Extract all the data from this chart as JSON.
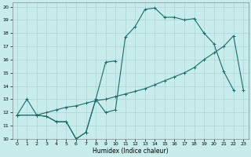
{
  "xlabel": "Humidex (Indice chaleur)",
  "background_color": "#c8ecec",
  "grid_color": "#aad4d4",
  "line_color": "#1a6b6b",
  "xlim": [
    -0.5,
    23.5
  ],
  "ylim": [
    10,
    20.3
  ],
  "xticks": [
    0,
    1,
    2,
    3,
    4,
    5,
    6,
    7,
    8,
    9,
    10,
    11,
    12,
    13,
    14,
    15,
    16,
    17,
    18,
    19,
    20,
    21,
    22,
    23
  ],
  "yticks": [
    10,
    11,
    12,
    13,
    14,
    15,
    16,
    17,
    18,
    19,
    20
  ],
  "line1": [
    [
      0,
      11.8
    ],
    [
      1,
      13.0
    ],
    [
      2,
      11.8
    ],
    [
      3,
      11.7
    ],
    [
      4,
      11.3
    ],
    [
      5,
      11.3
    ],
    [
      6,
      10.0
    ],
    [
      7,
      10.5
    ],
    [
      8,
      13.0
    ],
    [
      9,
      12.0
    ],
    [
      10,
      12.2
    ],
    [
      11,
      17.7
    ],
    [
      12,
      18.5
    ],
    [
      13,
      19.8
    ],
    [
      14,
      19.9
    ],
    [
      15,
      19.2
    ],
    [
      16,
      19.2
    ],
    [
      17,
      19.0
    ],
    [
      18,
      19.1
    ],
    [
      19,
      18.0
    ],
    [
      20,
      17.2
    ],
    [
      21,
      15.1
    ],
    [
      22,
      13.7
    ]
  ],
  "line2": [
    [
      0,
      11.8
    ],
    [
      2,
      11.8
    ],
    [
      3,
      11.7
    ],
    [
      4,
      11.3
    ],
    [
      5,
      11.3
    ],
    [
      6,
      10.0
    ],
    [
      7,
      10.5
    ],
    [
      8,
      13.0
    ],
    [
      9,
      15.8
    ],
    [
      10,
      15.9
    ]
  ],
  "line3": [
    [
      0,
      11.8
    ],
    [
      2,
      11.8
    ],
    [
      3,
      12.0
    ],
    [
      4,
      12.2
    ],
    [
      5,
      12.4
    ],
    [
      6,
      12.5
    ],
    [
      7,
      12.7
    ],
    [
      8,
      12.9
    ],
    [
      9,
      13.0
    ],
    [
      10,
      13.2
    ],
    [
      11,
      13.4
    ],
    [
      12,
      13.6
    ],
    [
      13,
      13.8
    ],
    [
      14,
      14.1
    ],
    [
      15,
      14.4
    ],
    [
      16,
      14.7
    ],
    [
      17,
      15.0
    ],
    [
      18,
      15.4
    ],
    [
      19,
      16.0
    ],
    [
      20,
      16.5
    ],
    [
      21,
      17.0
    ],
    [
      22,
      17.8
    ],
    [
      23,
      13.7
    ]
  ]
}
